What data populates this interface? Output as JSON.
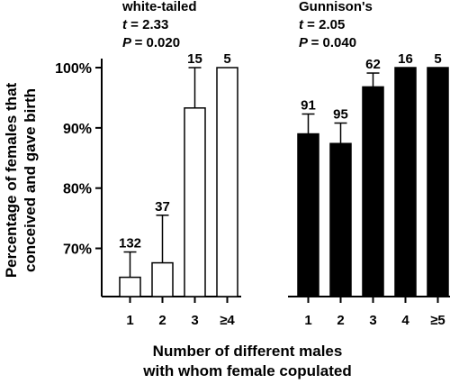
{
  "chart_data": {
    "type": "bar",
    "ylabel_lines": [
      "Percentage of females that",
      "conceived and gave birth"
    ],
    "xlabel_lines": [
      "Number of different males",
      "with whom female copulated"
    ],
    "ylim": [
      62,
      101.5
    ],
    "yticks": [
      70,
      80,
      90,
      100
    ],
    "ytick_labels": [
      "70%",
      "80%",
      "90%",
      "100%"
    ],
    "groups": [
      {
        "stats_lines": [
          "white-tailed",
          "t = 2.33",
          "P = 0.020"
        ],
        "stat_names": [
          "",
          "t",
          "P"
        ],
        "stat_values": [
          "white-tailed",
          "= 2.33",
          "= 0.020"
        ],
        "fill": "#ffffff",
        "categories": [
          "1",
          "2",
          "3",
          "≥4"
        ],
        "values": [
          65.2,
          67.6,
          93.3,
          100.0
        ],
        "error_upper": [
          69.4,
          75.5,
          100.0,
          100.0
        ],
        "n_labels": [
          "132",
          "37",
          "15",
          "5"
        ]
      },
      {
        "stat_names": [
          "",
          "t",
          "P"
        ],
        "stat_values": [
          "Gunnison's",
          "= 2.05",
          "= 0.040"
        ],
        "fill": "#000000",
        "categories": [
          "1",
          "2",
          "3",
          "4",
          "≥5"
        ],
        "values": [
          89.0,
          87.4,
          96.8,
          100.0,
          100.0
        ],
        "error_upper": [
          92.3,
          90.8,
          99.1,
          100.0,
          100.0
        ],
        "n_labels": [
          "91",
          "95",
          "62",
          "16",
          "5"
        ]
      }
    ]
  }
}
